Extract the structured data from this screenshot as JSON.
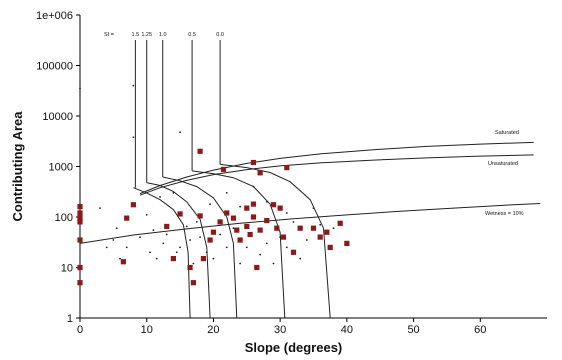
{
  "chart_data": {
    "type": "scatter",
    "xlabel": "Slope (degrees)",
    "ylabel": "Contributing Area",
    "xlim": [
      0,
      70
    ],
    "ylim": [
      1,
      1000000
    ],
    "yscale": "log",
    "x_ticks": [
      "0",
      "10",
      "20",
      "30",
      "40",
      "50",
      "60"
    ],
    "y_ticks": [
      "1",
      "10",
      "100",
      "1000",
      "10000",
      "100000",
      "1e+006"
    ],
    "grid": false,
    "legend": "none",
    "colors": {
      "square_marker": "#8b1a1a",
      "dot_marker": "#222222",
      "curve": "#222222"
    },
    "annotations": {
      "si_label": "SI =",
      "si_values": [
        "1.5",
        "1.25",
        "1.0",
        "0.5",
        "0.0"
      ],
      "saturated": "Saturated",
      "unsaturated": "Unsaturated",
      "wetness": "Wetness = 10%"
    },
    "series": [
      {
        "marker": "square",
        "points": [
          [
            0,
            160
          ],
          [
            0,
            120
          ],
          [
            0,
            95
          ],
          [
            0,
            80
          ],
          [
            0,
            35
          ],
          [
            0,
            10
          ],
          [
            0,
            5
          ],
          [
            6.5,
            13
          ],
          [
            7,
            95
          ],
          [
            8,
            175
          ],
          [
            13,
            65
          ],
          [
            14,
            15
          ],
          [
            15,
            115
          ],
          [
            16.5,
            10
          ],
          [
            17,
            5
          ],
          [
            18,
            2000
          ],
          [
            18,
            105
          ],
          [
            18.5,
            15
          ],
          [
            19.5,
            35
          ],
          [
            20,
            50
          ],
          [
            21,
            80
          ],
          [
            21.5,
            875
          ],
          [
            22,
            120
          ],
          [
            23,
            95
          ],
          [
            23.5,
            55
          ],
          [
            24,
            35
          ],
          [
            25,
            150
          ],
          [
            25,
            65
          ],
          [
            25.5,
            45
          ],
          [
            26,
            1200
          ],
          [
            26,
            180
          ],
          [
            26,
            100
          ],
          [
            26.5,
            10
          ],
          [
            27,
            750
          ],
          [
            27,
            55
          ],
          [
            28,
            85
          ],
          [
            29,
            175
          ],
          [
            29.5,
            60
          ],
          [
            30,
            150
          ],
          [
            30.5,
            40
          ],
          [
            31,
            950
          ],
          [
            32,
            20
          ],
          [
            33,
            60
          ],
          [
            35,
            60
          ],
          [
            36,
            40
          ],
          [
            37,
            50
          ],
          [
            37.5,
            25
          ],
          [
            39,
            75
          ],
          [
            40,
            30
          ]
        ]
      },
      {
        "marker": "dot",
        "points": [
          [
            0,
            35000
          ],
          [
            3,
            150
          ],
          [
            4,
            25
          ],
          [
            5,
            35
          ],
          [
            5.5,
            60
          ],
          [
            6,
            15
          ],
          [
            7,
            25
          ],
          [
            8,
            40000
          ],
          [
            8,
            3800
          ],
          [
            9,
            40
          ],
          [
            10,
            110
          ],
          [
            10.5,
            20
          ],
          [
            11,
            55
          ],
          [
            11.5,
            15
          ],
          [
            12,
            250
          ],
          [
            12.5,
            30
          ],
          [
            13,
            45
          ],
          [
            14,
            300
          ],
          [
            14.5,
            20
          ],
          [
            15,
            4800
          ],
          [
            15,
            25
          ],
          [
            16,
            65
          ],
          [
            16.5,
            35
          ],
          [
            17,
            12
          ],
          [
            17.5,
            80
          ],
          [
            18,
            40
          ],
          [
            19,
            20
          ],
          [
            19.5,
            180
          ],
          [
            20,
            15
          ],
          [
            21,
            45
          ],
          [
            22,
            25
          ],
          [
            22,
            300
          ],
          [
            23,
            60
          ],
          [
            24,
            12
          ],
          [
            24,
            160
          ],
          [
            25,
            25
          ],
          [
            26,
            400
          ],
          [
            27,
            18
          ],
          [
            28,
            30
          ],
          [
            28,
            200
          ],
          [
            29,
            12
          ],
          [
            30,
            40
          ],
          [
            31,
            25
          ],
          [
            31,
            120
          ],
          [
            32,
            80
          ],
          [
            33,
            15
          ],
          [
            34,
            35
          ],
          [
            35,
            150
          ],
          [
            36,
            70
          ],
          [
            38,
            60
          ]
        ]
      }
    ],
    "curves": {
      "saturated": [
        [
          9,
          290
        ],
        [
          12,
          420
        ],
        [
          16,
          620
        ],
        [
          20,
          850
        ],
        [
          25,
          1150
        ],
        [
          30,
          1450
        ],
        [
          36,
          1780
        ],
        [
          44,
          2150
        ],
        [
          52,
          2500
        ],
        [
          60,
          2780
        ],
        [
          68,
          3000
        ]
      ],
      "unsaturated": [
        [
          9,
          270
        ],
        [
          12,
          380
        ],
        [
          16,
          530
        ],
        [
          20,
          690
        ],
        [
          25,
          870
        ],
        [
          30,
          1030
        ],
        [
          36,
          1180
        ],
        [
          44,
          1340
        ],
        [
          52,
          1480
        ],
        [
          60,
          1610
        ],
        [
          68,
          1700
        ]
      ],
      "wetness": [
        [
          0,
          30
        ],
        [
          8,
          44
        ],
        [
          16,
          58
        ],
        [
          24,
          75
        ],
        [
          32,
          92
        ],
        [
          40,
          110
        ],
        [
          48,
          130
        ],
        [
          56,
          150
        ],
        [
          64,
          172
        ],
        [
          69,
          185
        ]
      ],
      "si": [
        {
          "vx": 8.3,
          "a": 8,
          "b": 16.5,
          "pts": [
            [
              8,
              380
            ],
            [
              10,
              300
            ],
            [
              12,
              220
            ],
            [
              14,
              140
            ],
            [
              15.5,
              70
            ],
            [
              16.2,
              20
            ],
            [
              16.5,
              1
            ]
          ]
        },
        {
          "vx": 10.0,
          "a": 10,
          "b": 19.5,
          "pts": [
            [
              10,
              480
            ],
            [
              12,
              420
            ],
            [
              14,
              320
            ],
            [
              16,
              200
            ],
            [
              18,
              90
            ],
            [
              19,
              25
            ],
            [
              19.5,
              1
            ]
          ]
        },
        {
          "vx": 12.4,
          "a": 12.4,
          "b": 23.5,
          "pts": [
            [
              12.4,
              620
            ],
            [
              15,
              520
            ],
            [
              17.5,
              400
            ],
            [
              20,
              240
            ],
            [
              22,
              100
            ],
            [
              23,
              30
            ],
            [
              23.5,
              1
            ]
          ]
        },
        {
          "vx": 16.8,
          "a": 16.8,
          "b": 30.7,
          "pts": [
            [
              16.8,
              820
            ],
            [
              20,
              720
            ],
            [
              23,
              600
            ],
            [
              26,
              400
            ],
            [
              28.5,
              180
            ],
            [
              30,
              50
            ],
            [
              30.7,
              1
            ]
          ]
        },
        {
          "vx": 21.0,
          "a": 21,
          "b": 37.5,
          "pts": [
            [
              21,
              1100
            ],
            [
              25,
              950
            ],
            [
              28.5,
              760
            ],
            [
              31.5,
              500
            ],
            [
              34.5,
              220
            ],
            [
              36.5,
              60
            ],
            [
              37.5,
              1
            ]
          ]
        }
      ]
    }
  }
}
